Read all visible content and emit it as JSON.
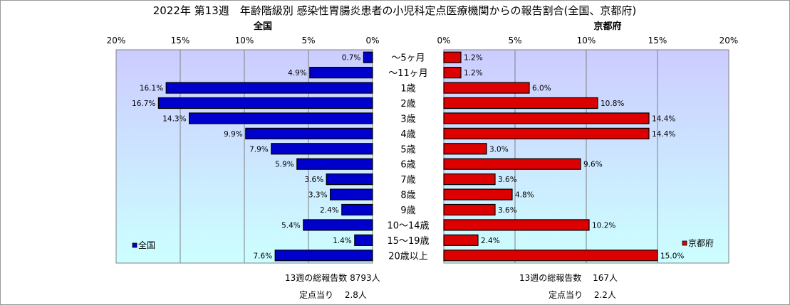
{
  "chart_data": {
    "type": "bar",
    "orientation": "horizontal-butterfly",
    "title": "2022年 第13週　年齢階級別 感染性胃腸炎患者の小児科定点医療機関からの報告割合(全国、京都府)",
    "categories": [
      "～5ヶ月",
      "～11ヶ月",
      "1歳",
      "2歳",
      "3歳",
      "4歳",
      "5歳",
      "6歳",
      "7歳",
      "8歳",
      "9歳",
      "10～14歳",
      "15～19歳",
      "20歳以上"
    ],
    "series": [
      {
        "name": "全国",
        "color": "#0000cc",
        "values": [
          0.7,
          4.9,
          16.1,
          16.7,
          14.3,
          9.9,
          7.9,
          5.9,
          3.6,
          3.3,
          2.4,
          5.4,
          1.4,
          7.6
        ],
        "labels": [
          "0.7%",
          "4.9%",
          "16.1%",
          "16.7%",
          "14.3%",
          "9.9%",
          "7.9%",
          "5.9%",
          "3.6%",
          "3.3%",
          "2.4%",
          "5.4%",
          "1.4%",
          "7.6%"
        ]
      },
      {
        "name": "京都府",
        "color": "#dd0000",
        "values": [
          1.2,
          1.2,
          6.0,
          10.8,
          14.4,
          14.4,
          3.0,
          9.6,
          3.6,
          4.8,
          3.6,
          10.2,
          2.4,
          15.0
        ],
        "labels": [
          "1.2%",
          "1.2%",
          "6.0%",
          "10.8%",
          "14.4%",
          "14.4%",
          "3.0%",
          "9.6%",
          "3.6%",
          "4.8%",
          "3.6%",
          "10.2%",
          "2.4%",
          "15.0%"
        ]
      }
    ],
    "panel_titles": [
      "全国",
      "京都府"
    ],
    "left_axis_ticks": [
      "20%",
      "15%",
      "10%",
      "5%",
      "0%"
    ],
    "right_axis_ticks": [
      "0%",
      "5%",
      "10%",
      "15%",
      "20%"
    ],
    "xlim": [
      0,
      20
    ],
    "legend_labels": [
      "全国",
      "京都府"
    ],
    "grid": true
  },
  "footer": {
    "national_total": "13週の総報告数 8793人",
    "national_per_site": "定点当り　 2.8人",
    "kyoto_total": "13週の総報告数　 167人",
    "kyoto_per_site": "定点当り　 2.2人"
  }
}
